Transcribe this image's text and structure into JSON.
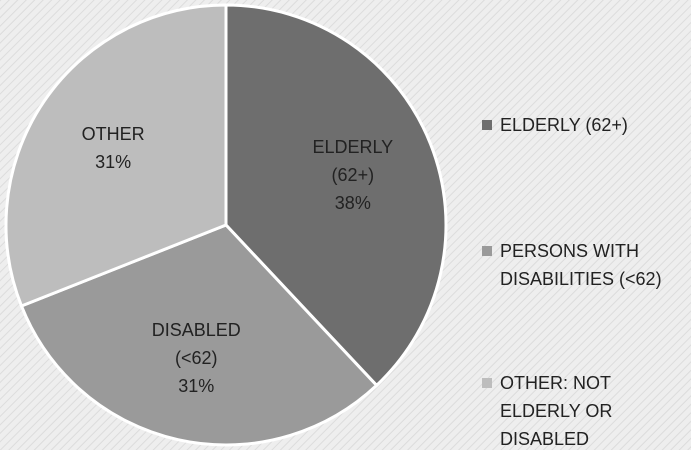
{
  "chart_data": {
    "type": "pie",
    "categories": [
      "ELDERLY (62+)",
      "PERSONS WITH DISABILITIES (<62)",
      "OTHER: NOT ELDERLY OR DISABLED"
    ],
    "labels": [
      "ELDERLY (62+)",
      "DISABLED (<62)",
      "OTHER"
    ],
    "values": [
      38,
      31,
      31
    ],
    "value_labels": [
      "38%",
      "31%",
      "31%"
    ],
    "colors": [
      "#6e6e6e",
      "#9a9a9a",
      "#bdbdbd"
    ],
    "legend": "right"
  }
}
